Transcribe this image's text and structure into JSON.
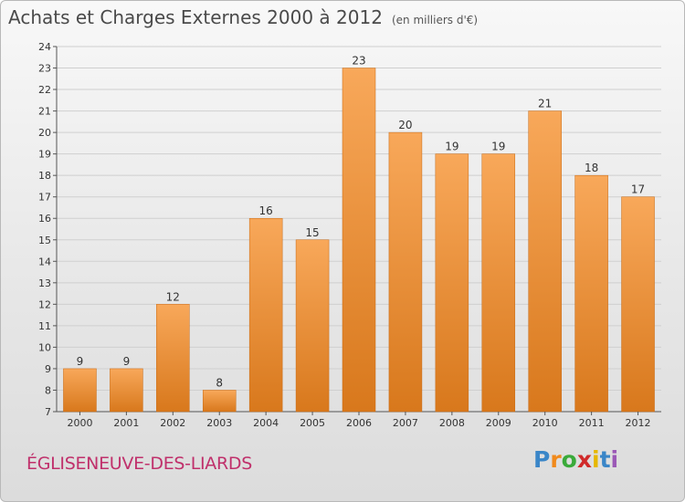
{
  "title": "Achats et Charges Externes 2000 à 2012",
  "subtitle": "(en milliers d'€)",
  "commune": "ÉGLISENEUVE-DES-LIARDS",
  "logo": {
    "letters": [
      "P",
      "r",
      "o",
      "x",
      "i",
      "t",
      "i"
    ],
    "colors": [
      "#3a86c8",
      "#f08a1c",
      "#3aaa3a",
      "#d02a2a",
      "#e6b800",
      "#3a86c8",
      "#9b59b6"
    ]
  },
  "colors": {
    "bar_light": "#f8a85a",
    "bar_dark": "#d8781c",
    "bar_edge": "#c86a14",
    "axis": "#555555",
    "grid": "#cfcfcf"
  },
  "chart_data": {
    "type": "bar",
    "categories": [
      "2000",
      "2001",
      "2002",
      "2003",
      "2004",
      "2005",
      "2006",
      "2007",
      "2008",
      "2009",
      "2010",
      "2011",
      "2012"
    ],
    "values": [
      9,
      9,
      12,
      8,
      16,
      15,
      23,
      20,
      19,
      19,
      21,
      18,
      17
    ],
    "data_labels": [
      "9",
      "9",
      "12",
      "8",
      "16",
      "15",
      "23",
      "20",
      "19",
      "19",
      "21",
      "18",
      "17"
    ],
    "ylim": [
      7,
      24
    ],
    "yticks": [
      "7",
      "8",
      "9",
      "10",
      "11",
      "12",
      "13",
      "14",
      "15",
      "16",
      "17",
      "18",
      "19",
      "20",
      "21",
      "22",
      "23",
      "24"
    ],
    "grid": true,
    "xlabel": "",
    "ylabel": ""
  }
}
